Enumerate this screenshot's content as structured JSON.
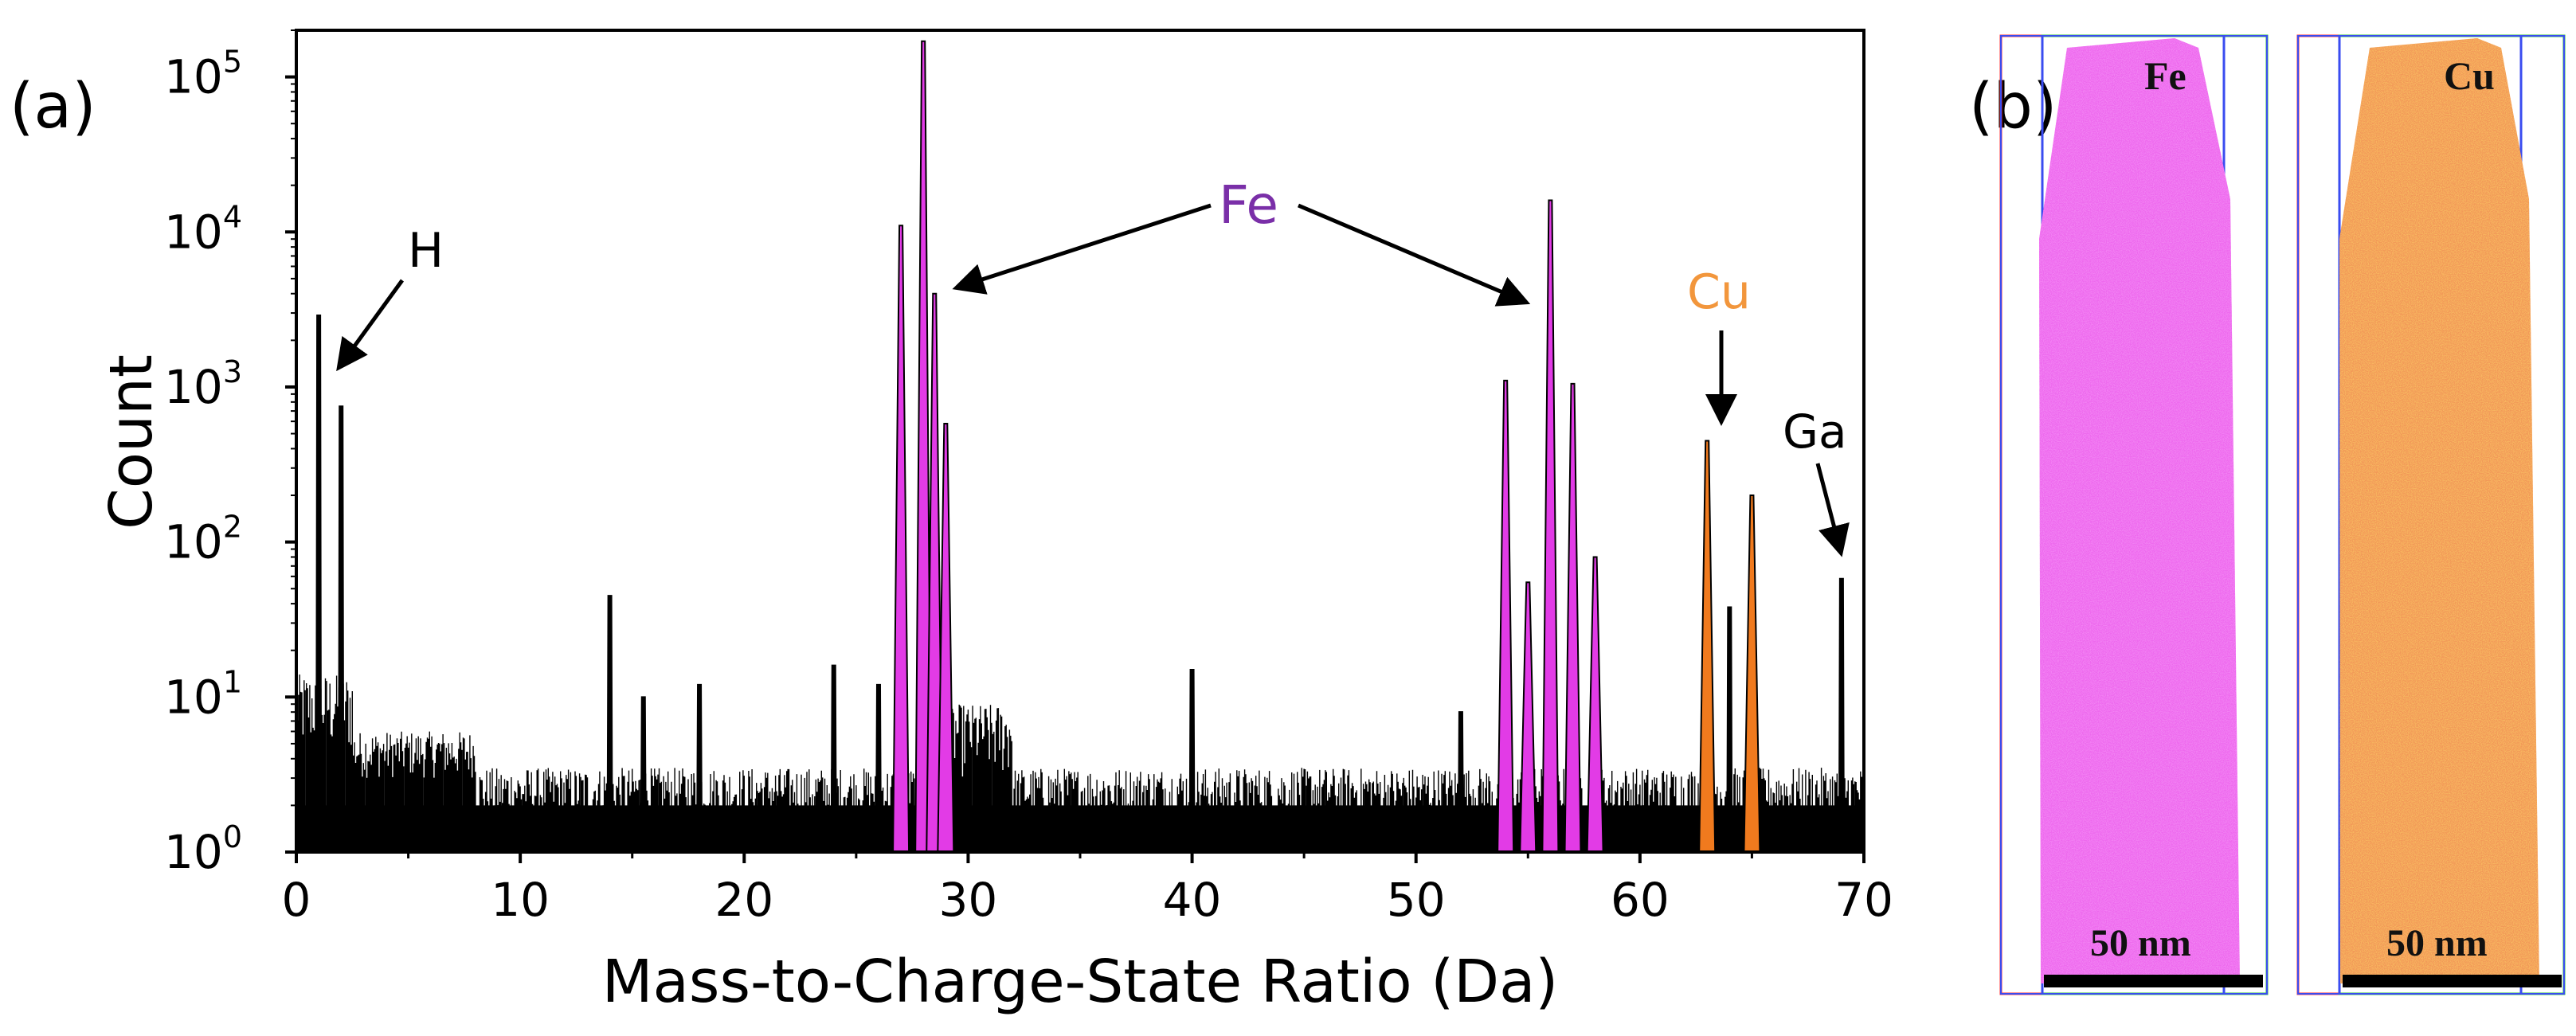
{
  "panel_labels": {
    "a": "(a)",
    "b": "(b)"
  },
  "colors": {
    "fe": "#e23be6",
    "fe_label": "#7a2fa8",
    "cu": "#f07a1e",
    "cu_label": "#f2963c",
    "axis": "#000000",
    "box_red": "#ff3030",
    "box_green": "#34c534",
    "box_blue": "#3a4cf0"
  },
  "chart_data": {
    "type": "bar",
    "xlabel": "Mass-to-Charge-State Ratio (Da)",
    "ylabel": "Count",
    "xlim": [
      0,
      70
    ],
    "ylim": [
      1,
      200000
    ],
    "yscale": "log",
    "xticks": [
      "0",
      "10",
      "20",
      "30",
      "40",
      "50",
      "60",
      "70"
    ],
    "yticks": [
      {
        "base": "10",
        "exp": "0"
      },
      {
        "base": "10",
        "exp": "1"
      },
      {
        "base": "10",
        "exp": "2"
      },
      {
        "base": "10",
        "exp": "3"
      },
      {
        "base": "10",
        "exp": "4"
      },
      {
        "base": "10",
        "exp": "5"
      }
    ],
    "background_level": 2,
    "peaks": [
      {
        "x": 1.0,
        "y": 2900,
        "species": "H"
      },
      {
        "x": 2.0,
        "y": 750,
        "species": "H"
      },
      {
        "x": 14.0,
        "y": 45,
        "species": ""
      },
      {
        "x": 15.5,
        "y": 10,
        "species": ""
      },
      {
        "x": 18.0,
        "y": 12,
        "species": ""
      },
      {
        "x": 24.0,
        "y": 16,
        "species": ""
      },
      {
        "x": 26.0,
        "y": 12,
        "species": ""
      },
      {
        "x": 27.0,
        "y": 11000,
        "species": "Fe"
      },
      {
        "x": 28.0,
        "y": 170000,
        "species": "Fe"
      },
      {
        "x": 28.5,
        "y": 4000,
        "species": "Fe"
      },
      {
        "x": 29.0,
        "y": 580,
        "species": "Fe"
      },
      {
        "x": 40.0,
        "y": 15,
        "species": ""
      },
      {
        "x": 52.0,
        "y": 8,
        "species": ""
      },
      {
        "x": 54.0,
        "y": 1100,
        "species": "Fe"
      },
      {
        "x": 55.0,
        "y": 55,
        "species": "Fe"
      },
      {
        "x": 56.0,
        "y": 16000,
        "species": "Fe"
      },
      {
        "x": 57.0,
        "y": 1050,
        "species": "Fe"
      },
      {
        "x": 58.0,
        "y": 80,
        "species": "Fe"
      },
      {
        "x": 63.0,
        "y": 450,
        "species": "Cu"
      },
      {
        "x": 64.0,
        "y": 38,
        "species": ""
      },
      {
        "x": 65.0,
        "y": 200,
        "species": "Cu"
      },
      {
        "x": 69.0,
        "y": 58,
        "species": ""
      }
    ],
    "annotations": [
      {
        "text": "H",
        "color": "#000000"
      },
      {
        "text": "Fe",
        "color": "#7a2fa8"
      },
      {
        "text": "Cu",
        "color": "#f2963c"
      },
      {
        "text": "Ga",
        "color": "#000000"
      }
    ]
  },
  "maps": [
    {
      "element": "Fe",
      "scale_bar": "50 nm",
      "color": "#e23be6"
    },
    {
      "element": "Cu",
      "scale_bar": "50 nm",
      "color": "#f07a1e"
    }
  ]
}
